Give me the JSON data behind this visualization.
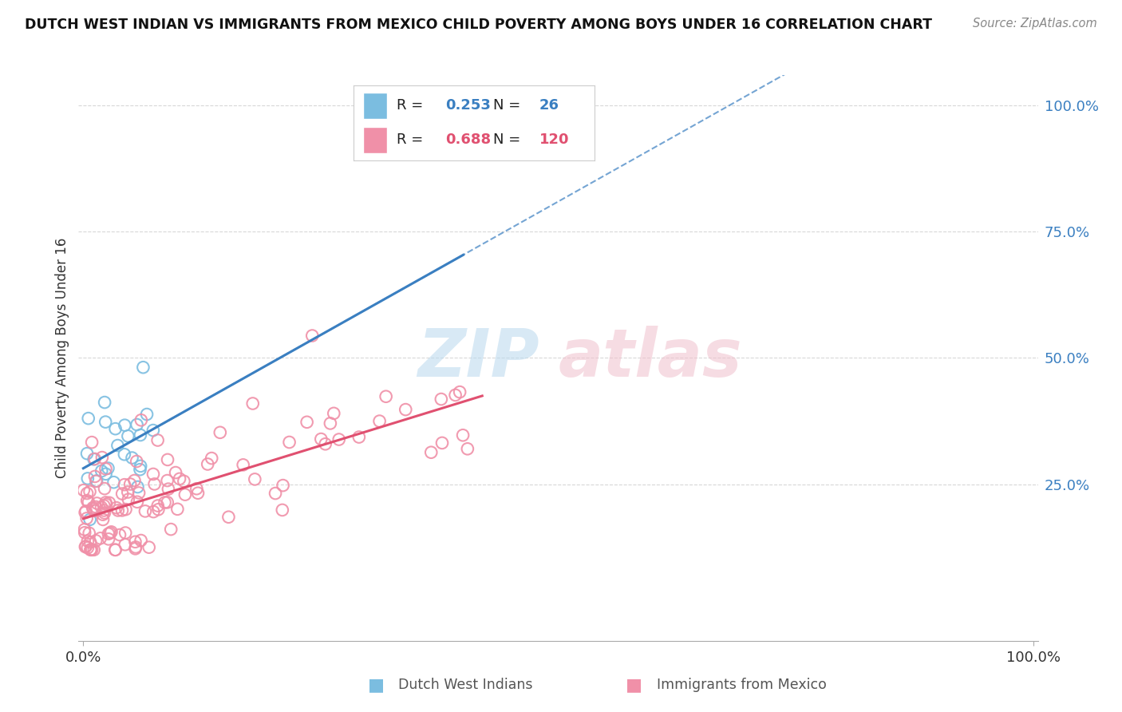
{
  "title": "DUTCH WEST INDIAN VS IMMIGRANTS FROM MEXICO CHILD POVERTY AMONG BOYS UNDER 16 CORRELATION CHART",
  "source": "Source: ZipAtlas.com",
  "ylabel": "Child Poverty Among Boys Under 16",
  "r_blue": 0.253,
  "n_blue": 26,
  "r_pink": 0.688,
  "n_pink": 120,
  "watermark_zip": "ZIP",
  "watermark_atlas": "atlas",
  "legend_label_blue": "Dutch West Indians",
  "legend_label_pink": "Immigrants from Mexico",
  "blue_color": "#7bbde0",
  "pink_color": "#f090a8",
  "blue_line_color": "#3a7fc1",
  "pink_line_color": "#e05070",
  "blue_dash_color": "#7bbde0",
  "ytick_positions": [
    0.25,
    0.5,
    0.75,
    1.0
  ],
  "ytick_labels": [
    "25.0%",
    "50.0%",
    "75.0%",
    "100.0%"
  ],
  "background_color": "#ffffff",
  "grid_color": "#d8d8d8",
  "blue_seed": 77,
  "pink_seed": 42
}
